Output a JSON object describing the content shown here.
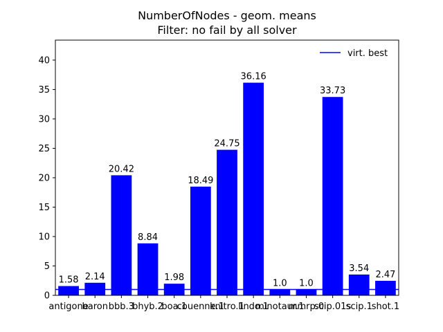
{
  "chart_data": {
    "type": "bar",
    "title": "NumberOfNodes - geom. means",
    "subtitle": "Filter: no fail by all solver",
    "xlabel": "",
    "ylabel": "",
    "categories": [
      "antigone",
      "baron",
      "bbb.3",
      "bhyb.2",
      "boa.1",
      "couenne.1",
      "knitro.1",
      "lindo.1",
      "minotaur.1",
      "mmrp.0",
      "scip.01s",
      "scip.1",
      "shot.1"
    ],
    "values": [
      1.58,
      2.14,
      20.42,
      8.84,
      1.98,
      18.49,
      24.75,
      36.16,
      1.0,
      1.0,
      33.73,
      3.54,
      2.47
    ],
    "value_labels": [
      "1.58",
      "2.14",
      "20.42",
      "8.84",
      "1.98",
      "18.49",
      "24.75",
      "36.16",
      "1.0",
      "1.0",
      "33.73",
      "3.54",
      "2.47"
    ],
    "labeled_bars": [
      0,
      1,
      2,
      3,
      4,
      5,
      6,
      7,
      8,
      9,
      10,
      11,
      12
    ],
    "ylim": [
      0,
      43.4
    ],
    "yticks": [
      0,
      5,
      10,
      15,
      20,
      25,
      30,
      35,
      40
    ],
    "reference_line": {
      "name": "virt. best",
      "value": 1.0
    },
    "legend": {
      "entries": [
        "virt. best"
      ],
      "placement": "top-right"
    },
    "bar_color": "#0000ff",
    "line_color": "#0000ff",
    "grid": false
  }
}
